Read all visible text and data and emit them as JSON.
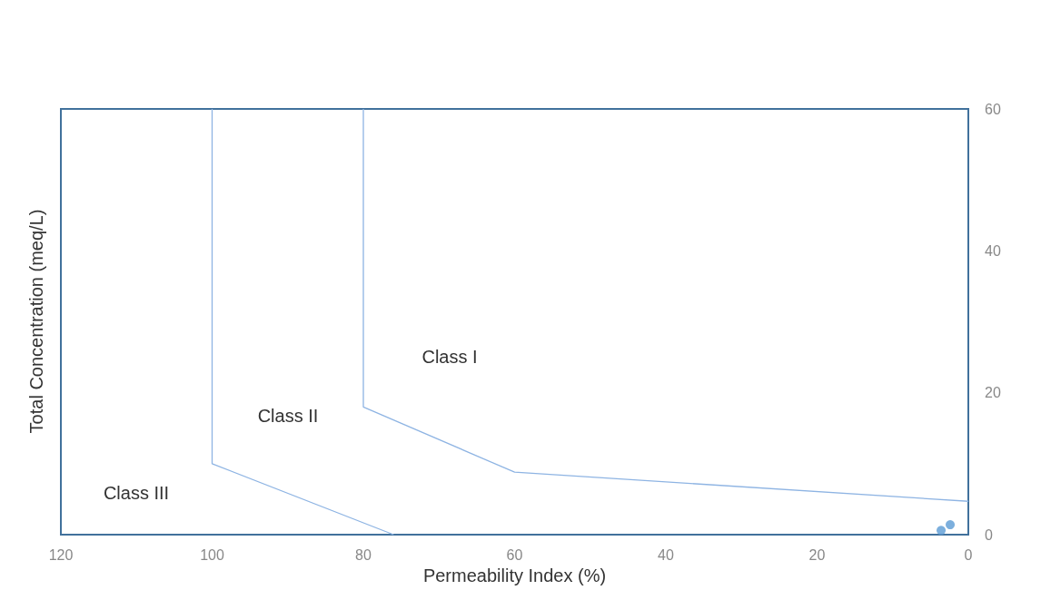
{
  "chart_data": {
    "type": "scatter",
    "xlabel": "Permeability Index (%)",
    "ylabel": "Total Concentration (meq/L)",
    "xlim": [
      120,
      0
    ],
    "xticks": [
      120,
      100,
      80,
      60,
      40,
      20,
      0
    ],
    "ylim": [
      0,
      60
    ],
    "yticks": [
      0,
      20,
      40,
      60
    ],
    "grid": false,
    "series": [
      {
        "type": "line",
        "color": "#8eb4e3",
        "marker": "none",
        "x": [
          80,
          80,
          60,
          0
        ],
        "values": [
          60,
          18,
          8.8,
          4.7
        ]
      },
      {
        "type": "line",
        "color": "#8eb4e3",
        "marker": "none",
        "x": [
          100,
          100,
          76
        ],
        "values": [
          60,
          10,
          0
        ]
      },
      {
        "color": "#5b9bd5",
        "marker": "circle",
        "x": [
          3.6,
          2.4
        ],
        "values": [
          0.6,
          1.4
        ]
      }
    ],
    "annotations": [
      "Class I",
      "Class II",
      "Class III"
    ]
  }
}
